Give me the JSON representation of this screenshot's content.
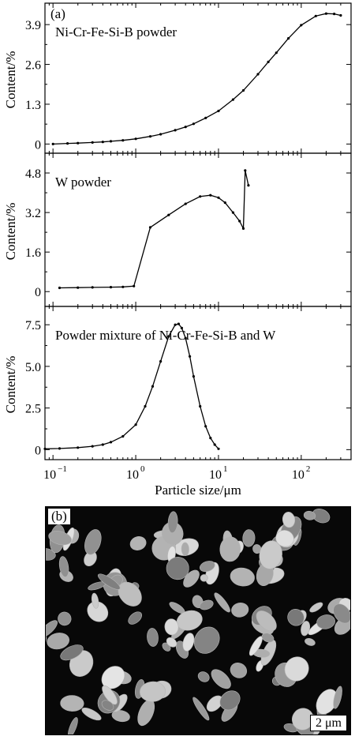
{
  "chart_data": {
    "type": "line",
    "shared_xlabel": "Particle size/μm",
    "x_scale": "log",
    "xlim": [
      0.08,
      400
    ],
    "x_tick_labels": [
      "10",
      "10",
      "10",
      "10"
    ],
    "x_tick_exponents": [
      "−1",
      "0",
      "1",
      "2"
    ],
    "x_tick_values": [
      0.1,
      1,
      10,
      100
    ],
    "panel_tag": "(a)",
    "panels": [
      {
        "ylabel": "Content/%",
        "annotation": "Ni-Cr-Fe-Si-B powder",
        "ylim": [
          -0.3,
          4.6
        ],
        "yticks": [
          0,
          1.3,
          2.6,
          3.9
        ],
        "ytick_labels": [
          "0",
          "1.3",
          "2.6",
          "3.9"
        ],
        "series": [
          {
            "x": [
              0.1,
              0.15,
              0.2,
              0.3,
              0.4,
              0.5,
              0.7,
              1.0,
              1.5,
              2.0,
              3.0,
              4.0,
              5.0,
              7.0,
              10,
              15,
              20,
              30,
              40,
              50,
              70,
              100,
              150,
              200,
              250,
              300
            ],
            "y": [
              0.0,
              0.02,
              0.03,
              0.05,
              0.07,
              0.09,
              0.12,
              0.17,
              0.25,
              0.32,
              0.45,
              0.56,
              0.66,
              0.85,
              1.08,
              1.45,
              1.75,
              2.28,
              2.68,
              2.98,
              3.45,
              3.88,
              4.18,
              4.26,
              4.25,
              4.2
            ]
          }
        ]
      },
      {
        "ylabel": "Content/%",
        "annotation": "W powder",
        "ylim": [
          -0.6,
          5.6
        ],
        "yticks": [
          0,
          1.6,
          3.2,
          4.8
        ],
        "ytick_labels": [
          "0",
          "1.6",
          "3.2",
          "4.8"
        ],
        "series": [
          {
            "x": [
              0.12,
              0.2,
              0.3,
              0.5,
              0.7,
              0.95,
              1.5,
              2.5,
              4,
              6,
              8,
              10,
              12,
              15,
              18,
              20,
              21,
              23
            ],
            "y": [
              0.15,
              0.16,
              0.17,
              0.18,
              0.19,
              0.22,
              2.6,
              3.1,
              3.55,
              3.85,
              3.9,
              3.8,
              3.6,
              3.2,
              2.85,
              2.55,
              4.9,
              4.3
            ]
          }
        ]
      },
      {
        "ylabel": "Content/%",
        "annotation": "Powder mixture of Ni-Cr-Fe-Si-B and W",
        "ylim": [
          -0.6,
          8.6
        ],
        "yticks": [
          0,
          2.5,
          5.0,
          7.5
        ],
        "ytick_labels": [
          "0",
          "2.5",
          "5.0",
          "7.5"
        ],
        "series": [
          {
            "x": [
              0.08,
              0.12,
              0.2,
              0.3,
              0.4,
              0.5,
              0.7,
              1.0,
              1.3,
              1.6,
              2.0,
              2.5,
              3.0,
              3.3,
              3.6,
              4.0,
              4.5,
              5.0,
              6.0,
              7.0,
              8.0,
              9.0,
              10
            ],
            "y": [
              0.05,
              0.07,
              0.12,
              0.2,
              0.3,
              0.45,
              0.8,
              1.5,
              2.6,
              3.8,
              5.3,
              6.8,
              7.5,
              7.55,
              7.3,
              6.7,
              5.6,
              4.4,
              2.6,
              1.4,
              0.7,
              0.3,
              0.05
            ]
          }
        ]
      }
    ]
  },
  "micrograph": {
    "label": "(b)",
    "scale_bar": "2 μm"
  },
  "colors": {
    "line": "#000000",
    "micrograph_background": "#080808",
    "particle_fill": "#b4b4b4"
  }
}
